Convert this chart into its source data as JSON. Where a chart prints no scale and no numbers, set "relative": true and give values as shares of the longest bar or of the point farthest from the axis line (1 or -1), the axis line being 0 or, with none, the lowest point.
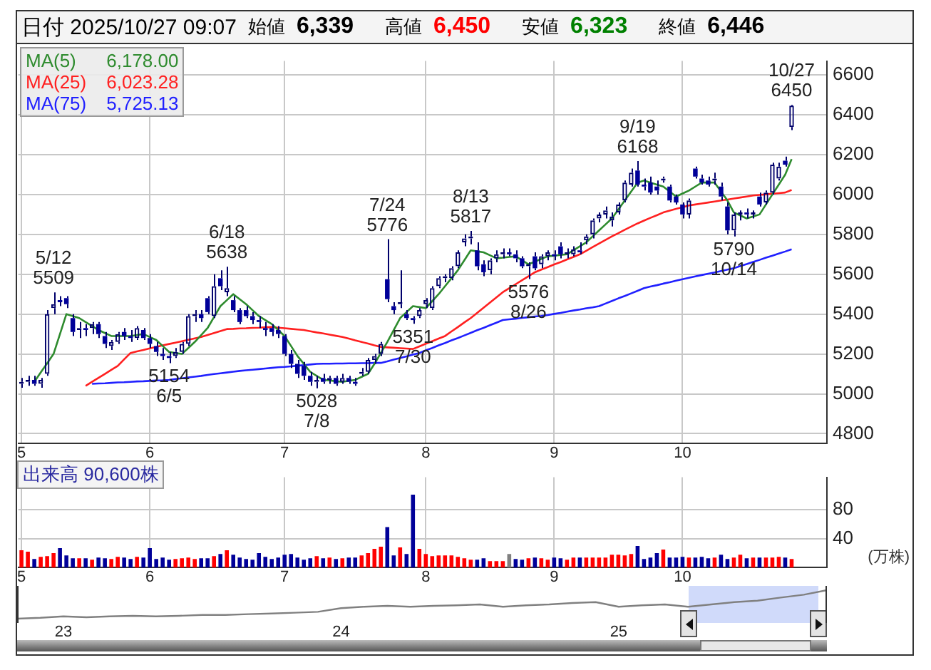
{
  "chart_data": [
    {
      "type": "other",
      "title": "日付 2025/10/27 09:07",
      "annotations": [
        "始値",
        "6,339",
        "高値",
        "6,450",
        "安値",
        "6,323",
        "終値",
        "6,446"
      ],
      "colors": [
        "#000000",
        "#000000",
        "#000000",
        "#ff0000",
        "#000000",
        "#008000",
        "#000000",
        "#000000"
      ]
    },
    {
      "type": "candlestick",
      "categories": [
        "5",
        null,
        null,
        null,
        null,
        null,
        null,
        null,
        null,
        null,
        null,
        null,
        null,
        null,
        null,
        null,
        null,
        null,
        null,
        null,
        "6",
        null,
        null,
        null,
        null,
        null,
        null,
        null,
        null,
        null,
        null,
        null,
        null,
        null,
        null,
        null,
        null,
        null,
        null,
        null,
        null,
        "7",
        null,
        null,
        null,
        null,
        null,
        null,
        null,
        null,
        null,
        null,
        null,
        null,
        null,
        null,
        null,
        null,
        null,
        null,
        null,
        null,
        null,
        "8",
        null,
        null,
        null,
        null,
        null,
        null,
        null,
        null,
        null,
        null,
        null,
        null,
        null,
        null,
        null,
        null,
        null,
        null,
        null,
        "9",
        null,
        null,
        null,
        null,
        null,
        null,
        null,
        null,
        null,
        null,
        null,
        null,
        null,
        null,
        null,
        null,
        null,
        null,
        null,
        "10",
        null,
        null,
        null,
        null,
        null,
        null,
        null,
        null,
        null,
        null,
        null,
        null,
        null,
        null,
        null,
        null,
        null,
        null,
        null,
        null,
        null,
        null
      ],
      "ohlc": [
        [
          5050,
          5080,
          5030,
          5060
        ],
        [
          5060,
          5090,
          5040,
          5070
        ],
        [
          5070,
          5090,
          5040,
          5050
        ],
        [
          5050,
          5080,
          5030,
          5070
        ],
        [
          5100,
          5420,
          5090,
          5400
        ],
        [
          5430,
          5509,
          5400,
          5450
        ],
        [
          5470,
          5490,
          5440,
          5460
        ],
        [
          5480,
          5490,
          5430,
          5450
        ],
        [
          5380,
          5400,
          5290,
          5310
        ],
        [
          5320,
          5360,
          5280,
          5330
        ],
        [
          5330,
          5350,
          5290,
          5320
        ],
        [
          5330,
          5360,
          5300,
          5350
        ],
        [
          5350,
          5360,
          5280,
          5300
        ],
        [
          5290,
          5310,
          5230,
          5250
        ],
        [
          5240,
          5270,
          5220,
          5260
        ],
        [
          5260,
          5310,
          5250,
          5300
        ],
        [
          5310,
          5330,
          5270,
          5290
        ],
        [
          5290,
          5320,
          5260,
          5280
        ],
        [
          5280,
          5340,
          5270,
          5330
        ],
        [
          5320,
          5330,
          5270,
          5280
        ],
        [
          5280,
          5300,
          5230,
          5250
        ],
        [
          5240,
          5260,
          5190,
          5210
        ],
        [
          5200,
          5230,
          5170,
          5190
        ],
        [
          5190,
          5210,
          5154,
          5180
        ],
        [
          5190,
          5230,
          5180,
          5210
        ],
        [
          5210,
          5260,
          5200,
          5250
        ],
        [
          5250,
          5400,
          5240,
          5390
        ],
        [
          5390,
          5420,
          5360,
          5400
        ],
        [
          5400,
          5420,
          5360,
          5380
        ],
        [
          5480,
          5490,
          5400,
          5410
        ],
        [
          5390,
          5600,
          5380,
          5540
        ],
        [
          5580,
          5620,
          5520,
          5540
        ],
        [
          5510,
          5638,
          5490,
          5530
        ],
        [
          5470,
          5490,
          5410,
          5420
        ],
        [
          5420,
          5430,
          5350,
          5360
        ],
        [
          5420,
          5440,
          5380,
          5390
        ],
        [
          5390,
          5410,
          5350,
          5370
        ],
        [
          5370,
          5390,
          5330,
          5360
        ],
        [
          5330,
          5360,
          5290,
          5320
        ],
        [
          5330,
          5350,
          5290,
          5310
        ],
        [
          5320,
          5340,
          5280,
          5300
        ],
        [
          5290,
          5300,
          5190,
          5200
        ],
        [
          5200,
          5220,
          5130,
          5150
        ],
        [
          5150,
          5170,
          5080,
          5100
        ],
        [
          5140,
          5160,
          5070,
          5090
        ],
        [
          5090,
          5110,
          5040,
          5060
        ],
        [
          5060,
          5090,
          5028,
          5070
        ],
        [
          5080,
          5100,
          5050,
          5060
        ],
        [
          5070,
          5090,
          5050,
          5080
        ],
        [
          5080,
          5090,
          5040,
          5050
        ],
        [
          5060,
          5100,
          5050,
          5080
        ],
        [
          5080,
          5090,
          5050,
          5060
        ],
        [
          5060,
          5080,
          5040,
          5050
        ],
        [
          5100,
          5130,
          5090,
          5110
        ],
        [
          5110,
          5180,
          5100,
          5170
        ],
        [
          5170,
          5200,
          5150,
          5190
        ],
        [
          5200,
          5260,
          5190,
          5250
        ],
        [
          5575,
          5776,
          5460,
          5475
        ],
        [
          5440,
          5460,
          5400,
          5420
        ],
        [
          5450,
          5620,
          5430,
          5460
        ],
        [
          5400,
          5420,
          5370,
          5380
        ],
        [
          5380,
          5390,
          5351,
          5370
        ],
        [
          5390,
          5430,
          5380,
          5420
        ],
        [
          5450,
          5480,
          5430,
          5470
        ],
        [
          5430,
          5540,
          5420,
          5530
        ],
        [
          5540,
          5590,
          5530,
          5580
        ],
        [
          5580,
          5600,
          5560,
          5590
        ],
        [
          5580,
          5640,
          5570,
          5630
        ],
        [
          5640,
          5720,
          5630,
          5710
        ],
        [
          5760,
          5800,
          5740,
          5780
        ],
        [
          5780,
          5817,
          5750,
          5790
        ],
        [
          5720,
          5760,
          5620,
          5640
        ],
        [
          5650,
          5670,
          5590,
          5610
        ],
        [
          5620,
          5680,
          5600,
          5670
        ],
        [
          5680,
          5720,
          5660,
          5700
        ],
        [
          5700,
          5730,
          5680,
          5710
        ],
        [
          5710,
          5730,
          5690,
          5700
        ],
        [
          5700,
          5720,
          5660,
          5680
        ],
        [
          5680,
          5690,
          5630,
          5640
        ],
        [
          5640,
          5660,
          5576,
          5650
        ],
        [
          5690,
          5710,
          5620,
          5630
        ],
        [
          5650,
          5700,
          5630,
          5690
        ],
        [
          5690,
          5720,
          5670,
          5710
        ],
        [
          5700,
          5720,
          5670,
          5690
        ],
        [
          5740,
          5760,
          5680,
          5700
        ],
        [
          5700,
          5730,
          5680,
          5710
        ],
        [
          5700,
          5740,
          5690,
          5725
        ],
        [
          5720,
          5760,
          5700,
          5710
        ],
        [
          5770,
          5800,
          5750,
          5790
        ],
        [
          5800,
          5880,
          5780,
          5870
        ],
        [
          5880,
          5910,
          5860,
          5900
        ],
        [
          5900,
          5940,
          5880,
          5920
        ],
        [
          5870,
          5910,
          5840,
          5890
        ],
        [
          5910,
          5960,
          5900,
          5950
        ],
        [
          5970,
          6070,
          5960,
          6060
        ],
        [
          6050,
          6130,
          6040,
          6110
        ],
        [
          6120,
          6168,
          6040,
          6050
        ],
        [
          6050,
          6080,
          6020,
          6040
        ],
        [
          6060,
          6090,
          6000,
          6010
        ],
        [
          6040,
          6070,
          6000,
          6020
        ],
        [
          6070,
          6090,
          6060,
          6080
        ],
        [
          6040,
          6050,
          5960,
          5970
        ],
        [
          5990,
          6000,
          5950,
          5960
        ],
        [
          5950,
          5960,
          5880,
          5900
        ],
        [
          5900,
          5980,
          5880,
          5970
        ],
        [
          6130,
          6140,
          6080,
          6090
        ],
        [
          6080,
          6100,
          6050,
          6060
        ],
        [
          6070,
          6090,
          6040,
          6050
        ],
        [
          6070,
          6110,
          6050,
          6080
        ],
        [
          6040,
          6060,
          5970,
          5990
        ],
        [
          5940,
          5960,
          5800,
          5820
        ],
        [
          5820,
          5910,
          5790,
          5900
        ],
        [
          5900,
          5920,
          5870,
          5910
        ],
        [
          5910,
          5930,
          5880,
          5900
        ],
        [
          5900,
          5920,
          5880,
          5910
        ],
        [
          5990,
          6010,
          5940,
          5950
        ],
        [
          5960,
          6020,
          5950,
          6010
        ],
        [
          6010,
          6160,
          6000,
          6150
        ],
        [
          6080,
          6160,
          6070,
          6140
        ],
        [
          6170,
          6190,
          6140,
          6150
        ],
        [
          6339,
          6450,
          6323,
          6446
        ],
        null,
        null,
        null,
        null,
        null
      ],
      "ylim": [
        4750,
        6670
      ],
      "yticks": [
        4800,
        5000,
        5200,
        5400,
        5600,
        5800,
        6000,
        6200,
        6400,
        6600
      ],
      "grid": true,
      "legend": "top left",
      "series": [
        {
          "name": "MA(5)",
          "type": "line",
          "color": "#2e8b2e",
          "values": [
            null,
            null,
            5060,
            5107,
            5153,
            5200,
            5300,
            5400,
            5390,
            5380,
            5360,
            5340,
            5320,
            5305,
            5290,
            5290,
            5290,
            5290,
            5295,
            5300,
            5285,
            5270,
            5240,
            5210,
            5205,
            5200,
            5230,
            5260,
            5295,
            5330,
            5385,
            5440,
            5470,
            5500,
            5475,
            5450,
            5420,
            5390,
            5370,
            5350,
            5320,
            5290,
            5240,
            5190,
            5150,
            5110,
            5090,
            5070,
            5067,
            5063,
            5060,
            5065,
            5070,
            5085,
            5100,
            5150,
            5205,
            5260,
            5320,
            5380,
            5410,
            5440,
            5435,
            5430,
            5465,
            5500,
            5540,
            5580,
            5620,
            5670,
            5720,
            5715,
            5710,
            5695,
            5680,
            5683,
            5687,
            5690,
            5670,
            5650,
            5663,
            5677,
            5690,
            5693,
            5697,
            5700,
            5720,
            5740,
            5760,
            5790,
            5820,
            5850,
            5880,
            5925,
            5970,
            6015,
            6060,
            6070,
            6060,
            6050,
            6040,
            6015,
            5990,
            6005,
            6020,
            6040,
            6060,
            6060,
            6060,
            6015,
            5970,
            5910,
            5895,
            5880,
            5890,
            5900,
            5950,
            6000,
            6050,
            6100,
            6178,
            null,
            null,
            null,
            null,
            null
          ]
        },
        {
          "name": "MA(25)",
          "type": "line",
          "color": "#ff2020",
          "values": [
            null,
            null,
            null,
            null,
            null,
            null,
            null,
            null,
            null,
            null,
            5040,
            5060,
            5080,
            5100,
            5120,
            5140,
            5173,
            5205,
            5213,
            5220,
            5228,
            5235,
            5243,
            5250,
            5257,
            5264,
            5271,
            5278,
            5285,
            5295,
            5305,
            5315,
            5325,
            5326,
            5328,
            5329,
            5331,
            5332,
            5334,
            5335,
            5332,
            5329,
            5326,
            5323,
            5320,
            5314,
            5308,
            5303,
            5297,
            5291,
            5285,
            5277,
            5268,
            5260,
            5252,
            5243,
            5235,
            5233,
            5231,
            5229,
            5227,
            5225,
            5238,
            5251,
            5264,
            5277,
            5290,
            5313,
            5335,
            5358,
            5380,
            5406,
            5432,
            5458,
            5484,
            5510,
            5530,
            5550,
            5570,
            5590,
            5610,
            5623,
            5636,
            5649,
            5661,
            5674,
            5687,
            5700,
            5718,
            5736,
            5754,
            5772,
            5790,
            5806,
            5823,
            5839,
            5855,
            5869,
            5883,
            5896,
            5910,
            5919,
            5928,
            5936,
            5945,
            5950,
            5955,
            5960,
            5965,
            5970,
            5975,
            5980,
            5985,
            5990,
            5995,
            5998,
            6001,
            6004,
            6007,
            6010,
            6023,
            null,
            null,
            null,
            null,
            null
          ]
        },
        {
          "name": "MA(75)",
          "type": "line",
          "color": "#2020ff",
          "values": [
            null,
            null,
            null,
            null,
            null,
            null,
            null,
            null,
            null,
            null,
            null,
            5050,
            5052,
            5053,
            5055,
            5057,
            5058,
            5060,
            5062,
            5063,
            5065,
            5067,
            5068,
            5070,
            5074,
            5078,
            5082,
            5086,
            5090,
            5095,
            5099,
            5103,
            5107,
            5111,
            5115,
            5118,
            5121,
            5124,
            5127,
            5130,
            5133,
            5135,
            5138,
            5141,
            5144,
            5147,
            5150,
            5151,
            5151,
            5152,
            5152,
            5153,
            5153,
            5154,
            5154,
            5155,
            5155,
            5163,
            5172,
            5180,
            5188,
            5197,
            5205,
            5218,
            5230,
            5243,
            5255,
            5268,
            5280,
            5293,
            5306,
            5319,
            5331,
            5344,
            5357,
            5370,
            5374,
            5377,
            5381,
            5384,
            5388,
            5391,
            5395,
            5401,
            5406,
            5412,
            5418,
            5423,
            5429,
            5434,
            5440,
            5453,
            5466,
            5479,
            5491,
            5504,
            5517,
            5530,
            5538,
            5545,
            5553,
            5560,
            5568,
            5575,
            5582,
            5589,
            5596,
            5603,
            5609,
            5616,
            5623,
            5630,
            5641,
            5651,
            5662,
            5672,
            5683,
            5693,
            5704,
            5714,
            5725,
            null,
            null,
            null,
            null,
            null
          ]
        }
      ],
      "annotations": [
        {
          "text": "5/12\n5509",
          "y": 5509
        },
        {
          "text": "6/18\n5638",
          "y": 5638
        },
        {
          "text": "7/24\n5776",
          "y": 5776
        },
        {
          "text": "8/13\n5817",
          "y": 5817
        },
        {
          "text": "9/19\n6168",
          "y": 6168
        },
        {
          "text": "10/27\n6450",
          "y": 6450
        },
        {
          "text": "5154\n6/5",
          "y": 5154
        },
        {
          "text": "5028\n7/8",
          "y": 5028
        },
        {
          "text": "5351\n7/30",
          "y": 5351
        },
        {
          "text": "5576\n8/26",
          "y": 5576
        },
        {
          "text": "5790\n10/14",
          "y": 5790
        },
        "6,178.00",
        "6,023.28",
        "5,725.13"
      ]
    },
    {
      "type": "bar",
      "title": "出来高 90,600株",
      "ylabel": "(万株)",
      "categories": [
        "5",
        null,
        null,
        null,
        null,
        null,
        null,
        null,
        null,
        null,
        null,
        null,
        null,
        null,
        null,
        null,
        null,
        null,
        null,
        null,
        "6",
        null,
        null,
        null,
        null,
        null,
        null,
        null,
        null,
        null,
        null,
        null,
        null,
        null,
        null,
        null,
        null,
        null,
        null,
        null,
        null,
        "7",
        null,
        null,
        null,
        null,
        null,
        null,
        null,
        null,
        null,
        null,
        null,
        null,
        null,
        null,
        null,
        null,
        null,
        null,
        null,
        null,
        null,
        "8",
        null,
        null,
        null,
        null,
        null,
        null,
        null,
        null,
        null,
        null,
        null,
        null,
        null,
        null,
        null,
        null,
        null,
        null,
        null,
        "9",
        null,
        null,
        null,
        null,
        null,
        null,
        null,
        null,
        null,
        null,
        null,
        null,
        null,
        null,
        null,
        null,
        null,
        null,
        null,
        "10",
        null,
        null,
        null,
        null,
        null,
        null,
        null,
        null,
        null,
        null,
        null,
        null,
        null,
        null,
        null,
        null,
        null,
        null,
        null,
        null,
        null,
        null
      ],
      "values": [
        24,
        22,
        12,
        15,
        16,
        20,
        27,
        17,
        13,
        13,
        13,
        11,
        14,
        13,
        12,
        15,
        14,
        12,
        15,
        14,
        27,
        12,
        14,
        11,
        12,
        13,
        14,
        12,
        13,
        13,
        16,
        19,
        24,
        18,
        14,
        12,
        11,
        20,
        15,
        12,
        14,
        18,
        19,
        14,
        11,
        13,
        16,
        13,
        14,
        12,
        13,
        14,
        14,
        17,
        20,
        26,
        29,
        56,
        17,
        28,
        19,
        101,
        26,
        19,
        16,
        17,
        17,
        17,
        15,
        13,
        11,
        11,
        13,
        9,
        9,
        9,
        19,
        12,
        11,
        13,
        14,
        13,
        11,
        14,
        13,
        11,
        14,
        14,
        14,
        14,
        14,
        14,
        18,
        18,
        17,
        19,
        30,
        12,
        14,
        20,
        25,
        14,
        14,
        15,
        14,
        14,
        15,
        13,
        14,
        18,
        12,
        14,
        18,
        13,
        14,
        14,
        14,
        14,
        15,
        14,
        12,
        null,
        null,
        null,
        null,
        null
      ],
      "colors": [
        "#ff0000",
        "#ff0000",
        "#000099",
        "#ff0000",
        "#ff0000",
        "#ff0000",
        "#000099",
        "#000099",
        "#000099",
        "#ff0000",
        "#000099",
        "#ff0000",
        "#000099",
        "#000099",
        "#ff0000",
        "#ff0000",
        "#000099",
        "#000099",
        "#ff0000",
        "#000099",
        "#000099",
        "#000099",
        "#000099",
        "#000099",
        "#ff0000",
        "#ff0000",
        "#ff0000",
        "#ff0000",
        "#000099",
        "#000099",
        "#ff0000",
        "#000099",
        "#ff0000",
        "#000099",
        "#000099",
        "#000099",
        "#000099",
        "#000099",
        "#000099",
        "#000099",
        "#000099",
        "#000099",
        "#000099",
        "#000099",
        "#000099",
        "#000099",
        "#ff0000",
        "#000099",
        "#ff0000",
        "#000099",
        "#ff0000",
        "#000099",
        "#000099",
        "#ff0000",
        "#ff0000",
        "#ff0000",
        "#ff0000",
        "#000099",
        "#000099",
        "#ff0000",
        "#000099",
        "#000099",
        "#ff0000",
        "#ff0000",
        "#ff0000",
        "#ff0000",
        "#ff0000",
        "#ff0000",
        "#ff0000",
        "#ff0000",
        "#ff0000",
        "#000099",
        "#000099",
        "#ff0000",
        "#ff0000",
        "#ff0000",
        "#808080",
        "#000099",
        "#000099",
        "#ff0000",
        "#000099",
        "#ff0000",
        "#ff0000",
        "#000099",
        "#000099",
        "#ff0000",
        "#ff0000",
        "#000099",
        "#ff0000",
        "#ff0000",
        "#ff0000",
        "#ff0000",
        "#ff0000",
        "#ff0000",
        "#ff0000",
        "#ff0000",
        "#000099",
        "#000099",
        "#000099",
        "#000099",
        "#ff0000",
        "#000099",
        "#000099",
        "#000099",
        "#ff0000",
        "#000099",
        "#000099",
        "#000099",
        "#ff0000",
        "#000099",
        "#000099",
        "#ff0000",
        "#ff0000",
        "#000099",
        "#ff0000",
        "#000099",
        "#ff0000",
        "#ff0000",
        "#ff0000",
        "#000099",
        "#ff0000",
        null,
        null,
        null,
        null,
        null
      ],
      "ylim": [
        0,
        125
      ],
      "yticks": [
        40,
        80
      ],
      "grid": true
    },
    {
      "type": "line",
      "relative": true,
      "color": "#808080",
      "x": [
        "2022-11",
        "2022-12",
        "2023-01",
        "2023-02",
        "2023-03",
        "2023-04",
        "2023-05",
        "2023-06",
        "2023-07",
        "2023-08",
        "2023-09",
        "2023-10",
        "2023-11",
        "2023-12",
        "2024-01",
        "2024-02",
        "2024-03",
        "2024-04",
        "2024-05",
        "2024-06",
        "2024-07",
        "2024-08",
        "2024-09",
        "2024-10",
        "2024-11",
        "2024-12",
        "2025-01",
        "2025-02",
        "2025-03",
        "2025-04",
        "2025-05",
        "2025-06",
        "2025-07",
        "2025-08",
        "2025-09",
        "2025-10"
      ],
      "values": [
        0,
        0.03,
        0.08,
        0.05,
        0.08,
        0.1,
        0.08,
        0.1,
        0.13,
        0.13,
        0.16,
        0.18,
        0.21,
        0.24,
        0.37,
        0.42,
        0.45,
        0.42,
        0.45,
        0.47,
        0.5,
        0.42,
        0.47,
        0.5,
        0.55,
        0.58,
        0.42,
        0.47,
        0.5,
        0.42,
        0.5,
        0.58,
        0.63,
        0.74,
        0.84,
        1
      ],
      "xlim": [
        "2022-11",
        "2025-10"
      ],
      "xticks": [
        {
          "value": "2023-01",
          "label": "23"
        },
        {
          "value": "2024-01",
          "label": "24"
        },
        {
          "value": "2025-01",
          "label": "25"
        }
      ]
    }
  ]
}
